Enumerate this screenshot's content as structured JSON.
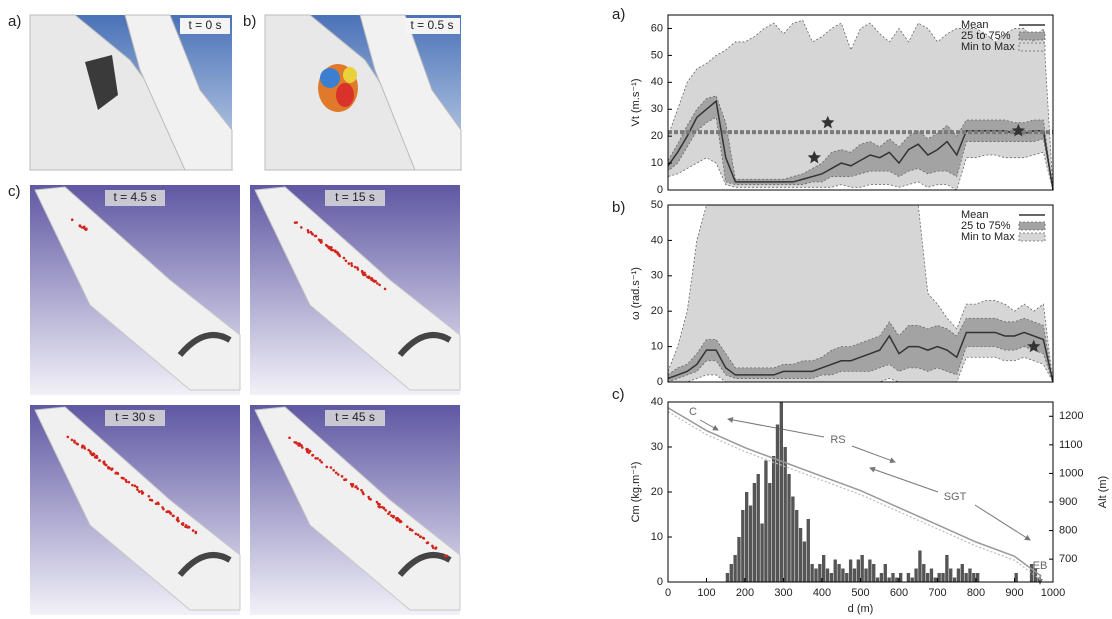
{
  "panels": [
    {
      "label": "a)",
      "time": "t = 0 s"
    },
    {
      "label": "b)",
      "time": "t = 0.5 s"
    }
  ],
  "panel_c": {
    "label": "c)",
    "frames": [
      "t = 4.5 s",
      "t = 15 s",
      "t = 30 s",
      "t = 45 s"
    ]
  },
  "chart_data": [
    {
      "type": "band",
      "label": "a)",
      "y_label": "Vt (m.s⁻¹)",
      "x": [
        0,
        25,
        50,
        75,
        100,
        125,
        150,
        175,
        200,
        225,
        250,
        275,
        300,
        325,
        350,
        375,
        400,
        425,
        450,
        475,
        500,
        525,
        550,
        575,
        600,
        625,
        650,
        675,
        700,
        725,
        750,
        775,
        800,
        825,
        850,
        875,
        900,
        925,
        950,
        975,
        1000
      ],
      "xlim": [
        0,
        1000
      ],
      "ylim": [
        0,
        65
      ],
      "yticks": [
        0,
        10,
        20,
        30,
        40,
        50,
        60
      ],
      "series": [
        {
          "name": "Min to Max",
          "color": "#d6d6d6",
          "lower": [
            5,
            6,
            8,
            10,
            12,
            10,
            2,
            1,
            1,
            1,
            1,
            1,
            1,
            1,
            1,
            1,
            1,
            1,
            2,
            1,
            1,
            2,
            2,
            2,
            1,
            2,
            3,
            1,
            2,
            2,
            0,
            12,
            12,
            13,
            13,
            12,
            12,
            12,
            13,
            14,
            0
          ],
          "upper": [
            20,
            30,
            40,
            45,
            47,
            50,
            52,
            55,
            55,
            57,
            60,
            62,
            58,
            62,
            63,
            55,
            57,
            60,
            62,
            52,
            60,
            62,
            58,
            55,
            60,
            55,
            62,
            60,
            55,
            58,
            60,
            60,
            60,
            58,
            55,
            58,
            60,
            60,
            55,
            60,
            0
          ]
        },
        {
          "name": "25 to 75%",
          "color": "#a3a3a3",
          "lower": [
            7,
            10,
            16,
            22,
            25,
            27,
            3,
            2,
            2,
            2,
            2,
            2,
            2,
            2,
            2,
            3,
            3,
            5,
            5,
            5,
            6,
            7,
            7,
            7,
            5,
            7,
            8,
            6,
            7,
            7,
            5,
            18,
            18,
            18,
            18,
            18,
            18,
            18,
            18,
            19,
            0
          ],
          "upper": [
            11,
            17,
            24,
            30,
            34,
            35,
            25,
            4,
            4,
            4,
            4,
            4,
            4,
            5,
            6,
            8,
            10,
            14,
            15,
            14,
            17,
            18,
            16,
            19,
            16,
            20,
            22,
            19,
            21,
            24,
            20,
            26,
            26,
            26,
            26,
            26,
            25,
            25,
            26,
            26,
            0
          ]
        },
        {
          "name": "Mean",
          "color": "#333333",
          "values": [
            9,
            14,
            20,
            27,
            30,
            33,
            12,
            3,
            3,
            3,
            3,
            3,
            3,
            3,
            4,
            5,
            6,
            8,
            10,
            9,
            11,
            13,
            12,
            14,
            10,
            15,
            17,
            13,
            15,
            18,
            13,
            22,
            22,
            22,
            22,
            22,
            21,
            21,
            22,
            22,
            0
          ]
        }
      ],
      "hline": 21.5,
      "markers": {
        "x": [
          415,
          380,
          910
        ],
        "values": [
          25,
          12,
          22
        ]
      }
    },
    {
      "type": "band",
      "label": "b)",
      "y_label": "ω (rad.s⁻¹)",
      "x": [
        0,
        25,
        50,
        75,
        100,
        125,
        150,
        175,
        200,
        225,
        250,
        275,
        300,
        325,
        350,
        375,
        400,
        425,
        450,
        475,
        500,
        525,
        550,
        575,
        600,
        625,
        650,
        675,
        700,
        725,
        750,
        775,
        800,
        825,
        850,
        875,
        900,
        925,
        950,
        975,
        1000
      ],
      "xlim": [
        0,
        1000
      ],
      "ylim": [
        0,
        50
      ],
      "yticks": [
        0,
        10,
        20,
        30,
        40,
        50
      ],
      "series": [
        {
          "name": "Min to Max",
          "color": "#d6d6d6",
          "lower": [
            0,
            0,
            0,
            1,
            2,
            2,
            0,
            0,
            0,
            0,
            0,
            0,
            0,
            0,
            0,
            0,
            0,
            0,
            0,
            0,
            0,
            0,
            0,
            1,
            0,
            0,
            0,
            0,
            0,
            0,
            0,
            7,
            7,
            7,
            7,
            6,
            6,
            7,
            6,
            5,
            0
          ],
          "upper": [
            3,
            10,
            20,
            40,
            50,
            50,
            50,
            50,
            50,
            50,
            50,
            50,
            50,
            50,
            50,
            50,
            50,
            50,
            50,
            50,
            50,
            50,
            50,
            50,
            50,
            50,
            50,
            25,
            22,
            18,
            15,
            22,
            22,
            23,
            23,
            22,
            20,
            22,
            20,
            22,
            0
          ]
        },
        {
          "name": "25 to 75%",
          "color": "#a3a3a3",
          "lower": [
            0,
            1,
            2,
            3,
            6,
            6,
            2,
            1,
            1,
            1,
            1,
            1,
            1,
            1,
            1,
            1,
            2,
            2,
            3,
            3,
            3,
            3,
            4,
            5,
            3,
            4,
            4,
            3,
            4,
            3,
            2,
            10,
            10,
            10,
            10,
            9,
            9,
            10,
            9,
            8,
            0
          ],
          "upper": [
            2,
            4,
            5,
            8,
            12,
            12,
            8,
            4,
            4,
            4,
            4,
            4,
            5,
            5,
            6,
            6,
            7,
            9,
            10,
            10,
            11,
            12,
            13,
            17,
            13,
            16,
            16,
            15,
            16,
            15,
            13,
            18,
            18,
            18,
            18,
            17,
            17,
            18,
            17,
            16,
            0
          ]
        },
        {
          "name": "Mean",
          "color": "#333333",
          "values": [
            1,
            2,
            3,
            5,
            9,
            9,
            4,
            2,
            2,
            2,
            2,
            2,
            3,
            3,
            3,
            3,
            4,
            5,
            6,
            6,
            7,
            8,
            9,
            13,
            8,
            10,
            10,
            9,
            10,
            9,
            7,
            14,
            14,
            14,
            14,
            13,
            13,
            14,
            13,
            12,
            0
          ]
        }
      ],
      "markers": {
        "x": [
          950
        ],
        "values": [
          10
        ]
      }
    },
    {
      "type": "histogram",
      "label": "c)",
      "y_label": "Cm (kg.m⁻¹)",
      "x_label": "d (m)",
      "y2_label": "Alt (m)",
      "bins": [
        140,
        150,
        160,
        170,
        180,
        190,
        200,
        210,
        220,
        230,
        240,
        250,
        260,
        270,
        280,
        290,
        300,
        310,
        320,
        330,
        340,
        350,
        360,
        370,
        380,
        390,
        400,
        410,
        420,
        430,
        440,
        450,
        460,
        470,
        480,
        490,
        500,
        510,
        520,
        530,
        540,
        550,
        560,
        570,
        580,
        590,
        600,
        610,
        620,
        630,
        640,
        650,
        660,
        670,
        680,
        690,
        700,
        710,
        720,
        730,
        740,
        750,
        760,
        770,
        780,
        790,
        800,
        810,
        820,
        830,
        840,
        850,
        860,
        870,
        880,
        890,
        900,
        910,
        920,
        930,
        940,
        950,
        960,
        970,
        980
      ],
      "values": [
        0,
        2,
        4,
        6,
        10,
        16,
        20,
        17,
        22,
        24,
        13,
        27,
        22,
        28,
        35,
        40,
        30,
        24,
        19,
        16,
        12,
        9,
        14,
        4,
        3,
        4,
        6,
        3,
        2,
        5,
        4,
        3,
        2,
        5,
        3,
        5,
        6,
        3,
        5,
        4,
        1,
        2,
        4,
        1,
        2,
        1,
        2,
        0,
        2,
        1,
        3,
        7,
        4,
        2,
        3,
        1,
        2,
        2,
        6,
        3,
        1,
        3,
        4,
        2,
        3,
        2,
        2,
        0,
        0,
        0,
        0,
        0,
        0,
        0,
        0,
        0,
        2,
        0,
        0,
        0,
        4,
        3,
        1,
        0
      ],
      "color": "#555555",
      "xlim": [
        0,
        1000
      ],
      "xticks": [
        0,
        100,
        200,
        300,
        400,
        500,
        600,
        700,
        800,
        900,
        1000
      ],
      "ylim": [
        0,
        40
      ],
      "yticks": [
        0,
        10,
        20,
        30,
        40
      ],
      "y2lim": [
        620,
        1250
      ],
      "y2ticks": [
        700,
        800,
        900,
        1000,
        1100,
        1200
      ],
      "alt_line": {
        "axis": "y2",
        "color": "#999999",
        "x": [
          0,
          50,
          100,
          200,
          300,
          400,
          500,
          600,
          700,
          800,
          900,
          970
        ],
        "values": [
          1230,
          1190,
          1150,
          1090,
          1040,
          990,
          940,
          880,
          820,
          760,
          710,
          640
        ]
      },
      "annotations": [
        "C",
        "RS",
        "SGT",
        "EB"
      ]
    }
  ]
}
